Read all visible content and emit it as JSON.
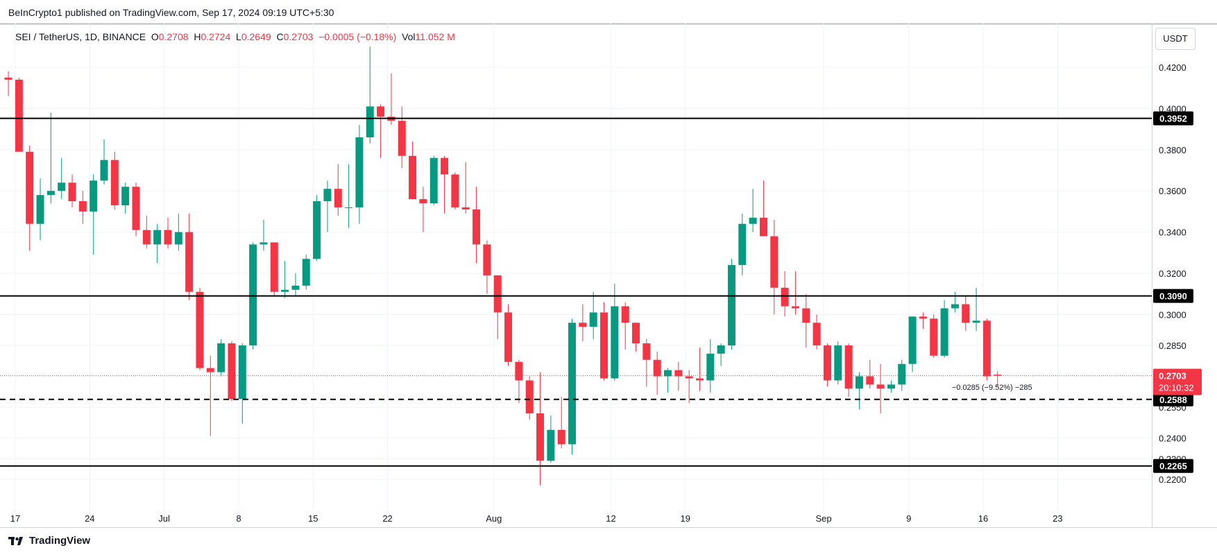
{
  "header": {
    "publisher_text": "BeInCrypto1 published on TradingView.com, Sep 17, 2024 09:19 UTC+5:30"
  },
  "legend": {
    "symbol": "SEI / TetherUS, 1D, BINANCE",
    "o_label": "O",
    "o_value": "0.2708",
    "h_label": "H",
    "h_value": "0.2724",
    "l_label": "L",
    "l_value": "0.2649",
    "c_label": "C",
    "c_value": "0.2703",
    "change": "−0.0005 (−0.18%)",
    "vol_label": "Vol",
    "vol_value": "11.052 M"
  },
  "unit_button": "USDT",
  "footer": {
    "brand": "TradingView"
  },
  "colors": {
    "up": "#089981",
    "down": "#f23645",
    "grid": "#f0f3fa",
    "level": "#000000"
  },
  "chart_data": {
    "type": "candlestick",
    "title": "SEI / TetherUS, 1D, BINANCE",
    "ylim": [
      0.21,
      0.4305
    ],
    "y_ticks": [
      "0.2200",
      "0.2300",
      "0.2400",
      "0.2550",
      "0.2850",
      "0.3000",
      "0.3200",
      "0.3400",
      "0.3600",
      "0.3800",
      "0.4000",
      "0.4200"
    ],
    "x_ticks": [
      {
        "label": "17",
        "i": 0
      },
      {
        "label": "24",
        "i": 7
      },
      {
        "label": "Jul",
        "i": 14
      },
      {
        "label": "8",
        "i": 21
      },
      {
        "label": "15",
        "i": 28
      },
      {
        "label": "22",
        "i": 35
      },
      {
        "label": "Aug",
        "i": 45
      },
      {
        "label": "12",
        "i": 56
      },
      {
        "label": "19",
        "i": 63
      },
      {
        "label": "Sep",
        "i": 76
      },
      {
        "label": "9",
        "i": 84
      },
      {
        "label": "16",
        "i": 91
      },
      {
        "label": "23",
        "i": 98
      }
    ],
    "levels": [
      {
        "value": 0.3952,
        "label": "0.3952",
        "style": "solid"
      },
      {
        "value": 0.309,
        "label": "0.3090",
        "style": "solid"
      },
      {
        "value": 0.2588,
        "label": "0.2588",
        "style": "dashed"
      },
      {
        "value": 0.2265,
        "label": "0.2265",
        "style": "solid"
      }
    ],
    "last_price": {
      "value": 0.2703,
      "label": "0.2703",
      "countdown": "20:10:32"
    },
    "measure_label": "−0.0285 (−9.52%) −285",
    "candles": [
      {
        "d": "2024-06-16",
        "o": 0.415,
        "h": 0.418,
        "l": 0.406,
        "c": 0.414
      },
      {
        "d": "2024-06-17",
        "o": 0.414,
        "h": 0.415,
        "l": 0.379,
        "c": 0.379
      },
      {
        "d": "2024-06-18",
        "o": 0.379,
        "h": 0.382,
        "l": 0.331,
        "c": 0.344
      },
      {
        "d": "2024-06-19",
        "o": 0.344,
        "h": 0.366,
        "l": 0.336,
        "c": 0.358
      },
      {
        "d": "2024-06-20",
        "o": 0.358,
        "h": 0.398,
        "l": 0.354,
        "c": 0.36
      },
      {
        "d": "2024-06-21",
        "o": 0.36,
        "h": 0.376,
        "l": 0.356,
        "c": 0.364
      },
      {
        "d": "2024-06-22",
        "o": 0.364,
        "h": 0.368,
        "l": 0.352,
        "c": 0.355
      },
      {
        "d": "2024-06-23",
        "o": 0.355,
        "h": 0.36,
        "l": 0.344,
        "c": 0.35
      },
      {
        "d": "2024-06-24",
        "o": 0.35,
        "h": 0.368,
        "l": 0.329,
        "c": 0.365
      },
      {
        "d": "2024-06-25",
        "o": 0.365,
        "h": 0.385,
        "l": 0.363,
        "c": 0.375
      },
      {
        "d": "2024-06-26",
        "o": 0.375,
        "h": 0.379,
        "l": 0.351,
        "c": 0.353
      },
      {
        "d": "2024-06-27",
        "o": 0.353,
        "h": 0.364,
        "l": 0.349,
        "c": 0.362
      },
      {
        "d": "2024-06-28",
        "o": 0.362,
        "h": 0.364,
        "l": 0.338,
        "c": 0.341
      },
      {
        "d": "2024-06-29",
        "o": 0.341,
        "h": 0.348,
        "l": 0.332,
        "c": 0.334
      },
      {
        "d": "2024-06-30",
        "o": 0.334,
        "h": 0.344,
        "l": 0.325,
        "c": 0.341
      },
      {
        "d": "2024-07-01",
        "o": 0.341,
        "h": 0.347,
        "l": 0.332,
        "c": 0.334
      },
      {
        "d": "2024-07-02",
        "o": 0.334,
        "h": 0.349,
        "l": 0.331,
        "c": 0.34
      },
      {
        "d": "2024-07-03",
        "o": 0.34,
        "h": 0.349,
        "l": 0.307,
        "c": 0.311
      },
      {
        "d": "2024-07-04",
        "o": 0.311,
        "h": 0.313,
        "l": 0.273,
        "c": 0.274
      },
      {
        "d": "2024-07-05",
        "o": 0.274,
        "h": 0.28,
        "l": 0.241,
        "c": 0.272
      },
      {
        "d": "2024-07-06",
        "o": 0.272,
        "h": 0.288,
        "l": 0.27,
        "c": 0.286
      },
      {
        "d": "2024-07-07",
        "o": 0.286,
        "h": 0.287,
        "l": 0.258,
        "c": 0.259
      },
      {
        "d": "2024-07-08",
        "o": 0.259,
        "h": 0.286,
        "l": 0.247,
        "c": 0.285
      },
      {
        "d": "2024-07-09",
        "o": 0.285,
        "h": 0.335,
        "l": 0.283,
        "c": 0.334
      },
      {
        "d": "2024-07-10",
        "o": 0.334,
        "h": 0.346,
        "l": 0.331,
        "c": 0.335
      },
      {
        "d": "2024-07-11",
        "o": 0.335,
        "h": 0.335,
        "l": 0.309,
        "c": 0.311
      },
      {
        "d": "2024-07-12",
        "o": 0.311,
        "h": 0.326,
        "l": 0.308,
        "c": 0.312
      },
      {
        "d": "2024-07-13",
        "o": 0.312,
        "h": 0.32,
        "l": 0.309,
        "c": 0.314
      },
      {
        "d": "2024-07-14",
        "o": 0.314,
        "h": 0.329,
        "l": 0.312,
        "c": 0.327
      },
      {
        "d": "2024-07-15",
        "o": 0.327,
        "h": 0.358,
        "l": 0.326,
        "c": 0.355
      },
      {
        "d": "2024-07-16",
        "o": 0.355,
        "h": 0.365,
        "l": 0.34,
        "c": 0.361
      },
      {
        "d": "2024-07-17",
        "o": 0.361,
        "h": 0.373,
        "l": 0.348,
        "c": 0.352
      },
      {
        "d": "2024-07-18",
        "o": 0.352,
        "h": 0.373,
        "l": 0.342,
        "c": 0.352
      },
      {
        "d": "2024-07-19",
        "o": 0.352,
        "h": 0.392,
        "l": 0.344,
        "c": 0.386
      },
      {
        "d": "2024-07-20",
        "o": 0.386,
        "h": 0.43,
        "l": 0.383,
        "c": 0.401
      },
      {
        "d": "2024-07-21",
        "o": 0.401,
        "h": 0.402,
        "l": 0.376,
        "c": 0.396
      },
      {
        "d": "2024-07-22",
        "o": 0.396,
        "h": 0.417,
        "l": 0.392,
        "c": 0.394
      },
      {
        "d": "2024-07-23",
        "o": 0.394,
        "h": 0.401,
        "l": 0.371,
        "c": 0.377
      },
      {
        "d": "2024-07-24",
        "o": 0.377,
        "h": 0.384,
        "l": 0.356,
        "c": 0.356
      },
      {
        "d": "2024-07-25",
        "o": 0.356,
        "h": 0.362,
        "l": 0.34,
        "c": 0.354
      },
      {
        "d": "2024-07-26",
        "o": 0.354,
        "h": 0.377,
        "l": 0.353,
        "c": 0.376
      },
      {
        "d": "2024-07-27",
        "o": 0.376,
        "h": 0.377,
        "l": 0.349,
        "c": 0.368
      },
      {
        "d": "2024-07-28",
        "o": 0.368,
        "h": 0.369,
        "l": 0.351,
        "c": 0.352
      },
      {
        "d": "2024-07-29",
        "o": 0.352,
        "h": 0.374,
        "l": 0.349,
        "c": 0.351
      },
      {
        "d": "2024-07-30",
        "o": 0.351,
        "h": 0.362,
        "l": 0.325,
        "c": 0.334
      },
      {
        "d": "2024-07-31",
        "o": 0.334,
        "h": 0.336,
        "l": 0.31,
        "c": 0.319
      },
      {
        "d": "2024-08-01",
        "o": 0.319,
        "h": 0.319,
        "l": 0.288,
        "c": 0.301
      },
      {
        "d": "2024-08-02",
        "o": 0.301,
        "h": 0.305,
        "l": 0.275,
        "c": 0.277
      },
      {
        "d": "2024-08-03",
        "o": 0.277,
        "h": 0.278,
        "l": 0.257,
        "c": 0.268
      },
      {
        "d": "2024-08-04",
        "o": 0.268,
        "h": 0.27,
        "l": 0.249,
        "c": 0.252
      },
      {
        "d": "2024-08-05",
        "o": 0.252,
        "h": 0.272,
        "l": 0.217,
        "c": 0.229
      },
      {
        "d": "2024-08-06",
        "o": 0.229,
        "h": 0.251,
        "l": 0.228,
        "c": 0.244
      },
      {
        "d": "2024-08-07",
        "o": 0.244,
        "h": 0.26,
        "l": 0.235,
        "c": 0.237
      },
      {
        "d": "2024-08-08",
        "o": 0.237,
        "h": 0.298,
        "l": 0.232,
        "c": 0.296
      },
      {
        "d": "2024-08-09",
        "o": 0.296,
        "h": 0.305,
        "l": 0.287,
        "c": 0.294
      },
      {
        "d": "2024-08-10",
        "o": 0.294,
        "h": 0.311,
        "l": 0.288,
        "c": 0.301
      },
      {
        "d": "2024-08-11",
        "o": 0.301,
        "h": 0.306,
        "l": 0.268,
        "c": 0.269
      },
      {
        "d": "2024-08-12",
        "o": 0.269,
        "h": 0.315,
        "l": 0.268,
        "c": 0.304
      },
      {
        "d": "2024-08-13",
        "o": 0.304,
        "h": 0.306,
        "l": 0.283,
        "c": 0.296
      },
      {
        "d": "2024-08-14",
        "o": 0.296,
        "h": 0.296,
        "l": 0.282,
        "c": 0.286
      },
      {
        "d": "2024-08-15",
        "o": 0.286,
        "h": 0.288,
        "l": 0.265,
        "c": 0.278
      },
      {
        "d": "2024-08-16",
        "o": 0.278,
        "h": 0.282,
        "l": 0.261,
        "c": 0.27
      },
      {
        "d": "2024-08-17",
        "o": 0.27,
        "h": 0.274,
        "l": 0.262,
        "c": 0.273
      },
      {
        "d": "2024-08-18",
        "o": 0.273,
        "h": 0.277,
        "l": 0.263,
        "c": 0.27
      },
      {
        "d": "2024-08-19",
        "o": 0.27,
        "h": 0.273,
        "l": 0.257,
        "c": 0.269
      },
      {
        "d": "2024-08-20",
        "o": 0.269,
        "h": 0.284,
        "l": 0.263,
        "c": 0.268
      },
      {
        "d": "2024-08-21",
        "o": 0.268,
        "h": 0.288,
        "l": 0.262,
        "c": 0.281
      },
      {
        "d": "2024-08-22",
        "o": 0.281,
        "h": 0.286,
        "l": 0.275,
        "c": 0.285
      },
      {
        "d": "2024-08-23",
        "o": 0.285,
        "h": 0.327,
        "l": 0.283,
        "c": 0.324
      },
      {
        "d": "2024-08-24",
        "o": 0.324,
        "h": 0.349,
        "l": 0.319,
        "c": 0.344
      },
      {
        "d": "2024-08-25",
        "o": 0.344,
        "h": 0.361,
        "l": 0.34,
        "c": 0.347
      },
      {
        "d": "2024-08-26",
        "o": 0.347,
        "h": 0.365,
        "l": 0.338,
        "c": 0.338
      },
      {
        "d": "2024-08-27",
        "o": 0.338,
        "h": 0.346,
        "l": 0.3,
        "c": 0.313
      },
      {
        "d": "2024-08-28",
        "o": 0.313,
        "h": 0.321,
        "l": 0.299,
        "c": 0.304
      },
      {
        "d": "2024-08-29",
        "o": 0.304,
        "h": 0.321,
        "l": 0.3,
        "c": 0.303
      },
      {
        "d": "2024-08-30",
        "o": 0.303,
        "h": 0.31,
        "l": 0.284,
        "c": 0.296
      },
      {
        "d": "2024-08-31",
        "o": 0.296,
        "h": 0.3,
        "l": 0.283,
        "c": 0.285
      },
      {
        "d": "2024-09-01",
        "o": 0.285,
        "h": 0.286,
        "l": 0.265,
        "c": 0.268
      },
      {
        "d": "2024-09-02",
        "o": 0.268,
        "h": 0.287,
        "l": 0.266,
        "c": 0.285
      },
      {
        "d": "2024-09-03",
        "o": 0.285,
        "h": 0.286,
        "l": 0.26,
        "c": 0.264
      },
      {
        "d": "2024-09-04",
        "o": 0.264,
        "h": 0.272,
        "l": 0.254,
        "c": 0.27
      },
      {
        "d": "2024-09-05",
        "o": 0.27,
        "h": 0.278,
        "l": 0.264,
        "c": 0.266
      },
      {
        "d": "2024-09-06",
        "o": 0.266,
        "h": 0.276,
        "l": 0.252,
        "c": 0.264
      },
      {
        "d": "2024-09-07",
        "o": 0.264,
        "h": 0.268,
        "l": 0.262,
        "c": 0.266
      },
      {
        "d": "2024-09-08",
        "o": 0.266,
        "h": 0.278,
        "l": 0.263,
        "c": 0.276
      },
      {
        "d": "2024-09-09",
        "o": 0.276,
        "h": 0.299,
        "l": 0.272,
        "c": 0.299
      },
      {
        "d": "2024-09-10",
        "o": 0.299,
        "h": 0.301,
        "l": 0.293,
        "c": 0.298
      },
      {
        "d": "2024-09-11",
        "o": 0.298,
        "h": 0.3,
        "l": 0.279,
        "c": 0.28
      },
      {
        "d": "2024-09-12",
        "o": 0.28,
        "h": 0.307,
        "l": 0.279,
        "c": 0.303
      },
      {
        "d": "2024-09-13",
        "o": 0.303,
        "h": 0.311,
        "l": 0.301,
        "c": 0.305
      },
      {
        "d": "2024-09-14",
        "o": 0.305,
        "h": 0.309,
        "l": 0.292,
        "c": 0.296
      },
      {
        "d": "2024-09-15",
        "o": 0.296,
        "h": 0.313,
        "l": 0.292,
        "c": 0.297
      },
      {
        "d": "2024-09-16",
        "o": 0.297,
        "h": 0.298,
        "l": 0.268,
        "c": 0.27
      },
      {
        "d": "2024-09-17",
        "o": 0.2708,
        "h": 0.2724,
        "l": 0.2649,
        "c": 0.2703
      }
    ]
  }
}
